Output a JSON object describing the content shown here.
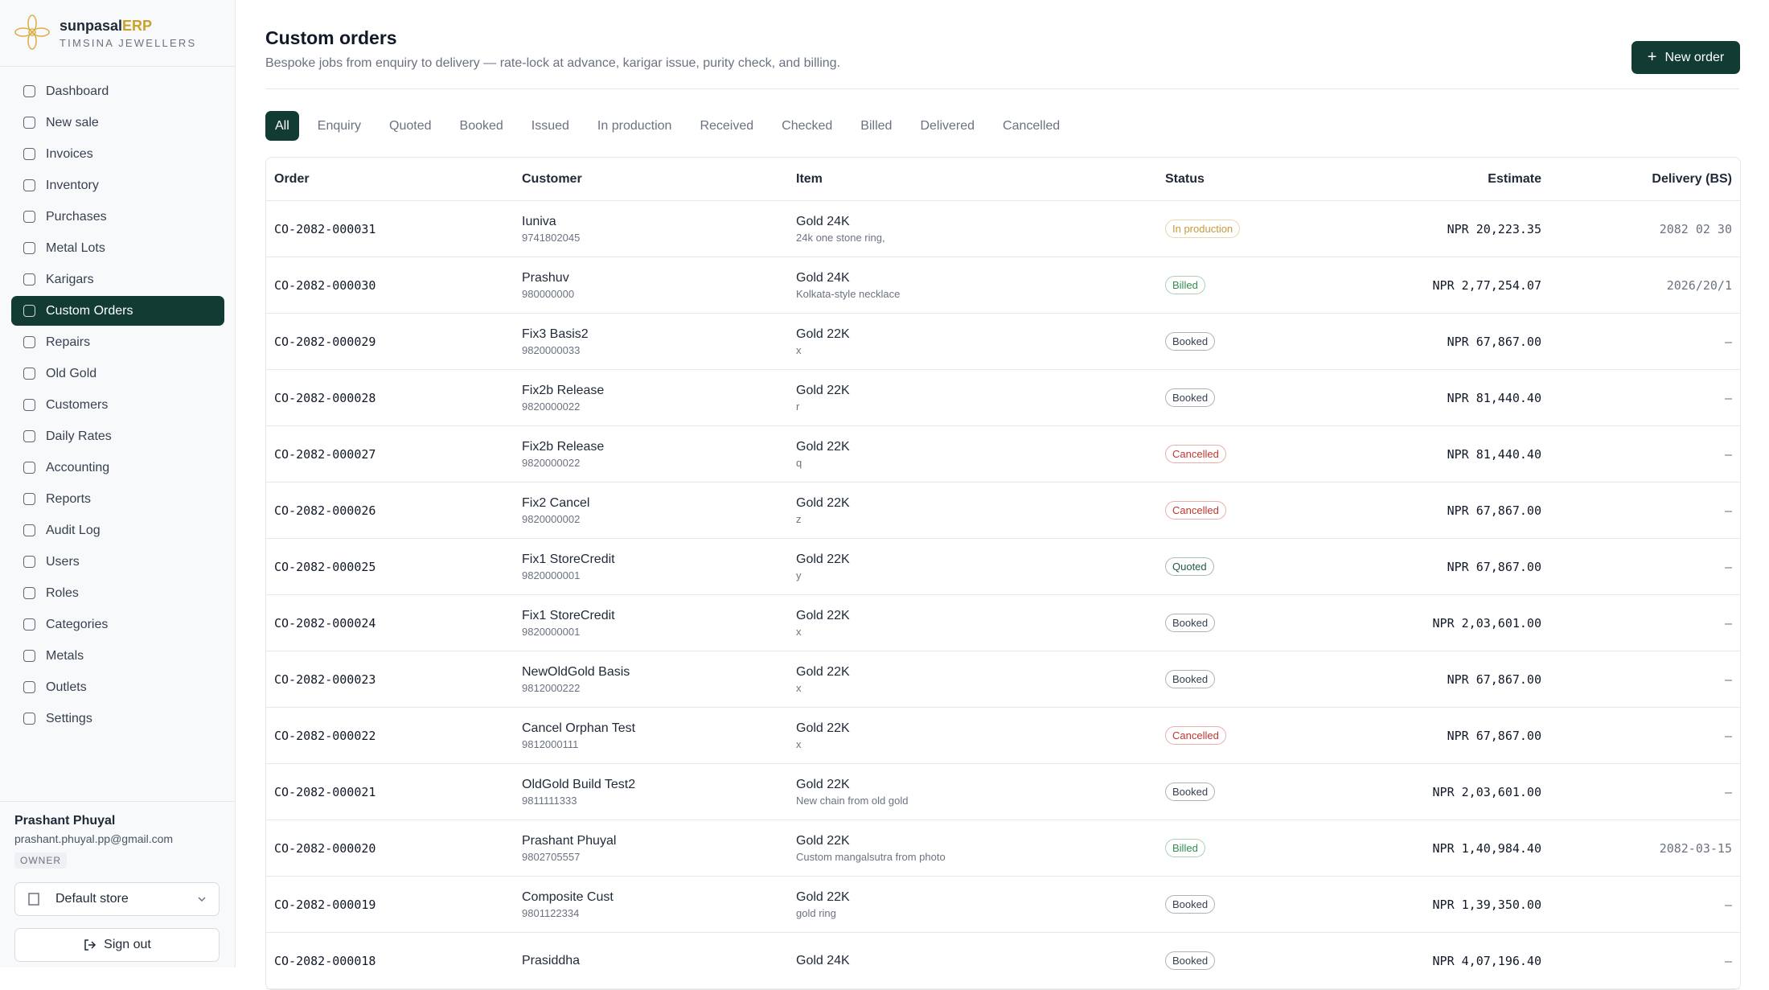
{
  "brand": {
    "name": "sunpasal",
    "suffix": "ERP",
    "tagline": "TIMSINA JEWELLERS"
  },
  "nav": [
    "Dashboard",
    "New sale",
    "Invoices",
    "Inventory",
    "Purchases",
    "Metal Lots",
    "Karigars",
    "Custom Orders",
    "Repairs",
    "Old Gold",
    "Customers",
    "Daily Rates",
    "Accounting",
    "Reports",
    "Audit Log",
    "Users",
    "Roles",
    "Categories",
    "Metals",
    "Outlets",
    "Settings"
  ],
  "nav_active": 7,
  "user": {
    "name": "Prashant Phuyal",
    "email": "prashant.phuyal.pp@gmail.com",
    "role": "OWNER",
    "store": "Default store",
    "sign_out": "Sign out"
  },
  "header": {
    "title": "Custom orders",
    "subtitle": "Bespoke jobs from enquiry to delivery — rate-lock at advance, karigar issue, purity check, and billing.",
    "button": "New order"
  },
  "tabs": [
    "All",
    "Enquiry",
    "Quoted",
    "Booked",
    "Issued",
    "In production",
    "Received",
    "Checked",
    "Billed",
    "Delivered",
    "Cancelled"
  ],
  "tab_active": 0,
  "table": {
    "columns": [
      "Order",
      "Customer",
      "Item",
      "Status",
      "Estimate",
      "Delivery (BS)"
    ],
    "rows": [
      {
        "order": "CO-2082-000031",
        "customer": "Iuniva",
        "phone": "9741802045",
        "item": "Gold 24K",
        "note": "24k one stone ring,",
        "status": "In production",
        "status_color": "#c79a3b",
        "estimate": "NPR 20,223.35",
        "delivery": "2082 02 30"
      },
      {
        "order": "CO-2082-000030",
        "customer": "Prashuv",
        "phone": "980000000",
        "item": "Gold 24K",
        "note": "Kolkata-style necklace",
        "status": "Billed",
        "status_color": "#2f8f4e",
        "estimate": "NPR 2,77,254.07",
        "delivery": "2026/20/1"
      },
      {
        "order": "CO-2082-000029",
        "customer": "Fix3 Basis2",
        "phone": "9820000033",
        "item": "Gold 22K",
        "note": "x",
        "status": "Booked",
        "status_color": "#374151",
        "estimate": "NPR 67,867.00",
        "delivery": "—"
      },
      {
        "order": "CO-2082-000028",
        "customer": "Fix2b Release",
        "phone": "9820000022",
        "item": "Gold 22K",
        "note": "r",
        "status": "Booked",
        "status_color": "#374151",
        "estimate": "NPR 81,440.40",
        "delivery": "—"
      },
      {
        "order": "CO-2082-000027",
        "customer": "Fix2b Release",
        "phone": "9820000022",
        "item": "Gold 22K",
        "note": "q",
        "status": "Cancelled",
        "status_color": "#c2362f",
        "estimate": "NPR 81,440.40",
        "delivery": "—"
      },
      {
        "order": "CO-2082-000026",
        "customer": "Fix2 Cancel",
        "phone": "9820000002",
        "item": "Gold 22K",
        "note": "z",
        "status": "Cancelled",
        "status_color": "#c2362f",
        "estimate": "NPR 67,867.00",
        "delivery": "—"
      },
      {
        "order": "CO-2082-000025",
        "customer": "Fix1 StoreCredit",
        "phone": "9820000001",
        "item": "Gold 22K",
        "note": "y",
        "status": "Quoted",
        "status_color": "#1f5a47",
        "estimate": "NPR 67,867.00",
        "delivery": "—"
      },
      {
        "order": "CO-2082-000024",
        "customer": "Fix1 StoreCredit",
        "phone": "9820000001",
        "item": "Gold 22K",
        "note": "x",
        "status": "Booked",
        "status_color": "#374151",
        "estimate": "NPR 2,03,601.00",
        "delivery": "—"
      },
      {
        "order": "CO-2082-000023",
        "customer": "NewOldGold Basis",
        "phone": "9812000222",
        "item": "Gold 22K",
        "note": "x",
        "status": "Booked",
        "status_color": "#374151",
        "estimate": "NPR 67,867.00",
        "delivery": "—"
      },
      {
        "order": "CO-2082-000022",
        "customer": "Cancel Orphan Test",
        "phone": "9812000111",
        "item": "Gold 22K",
        "note": "x",
        "status": "Cancelled",
        "status_color": "#c2362f",
        "estimate": "NPR 67,867.00",
        "delivery": "—"
      },
      {
        "order": "CO-2082-000021",
        "customer": "OldGold Build Test2",
        "phone": "9811111333",
        "item": "Gold 22K",
        "note": "New chain from old gold",
        "status": "Booked",
        "status_color": "#374151",
        "estimate": "NPR 2,03,601.00",
        "delivery": "—"
      },
      {
        "order": "CO-2082-000020",
        "customer": "Prashant Phuyal",
        "phone": "9802705557",
        "item": "Gold 22K",
        "note": "Custom mangalsutra from photo",
        "status": "Billed",
        "status_color": "#2f8f4e",
        "estimate": "NPR 1,40,984.40",
        "delivery": "2082-03-15"
      },
      {
        "order": "CO-2082-000019",
        "customer": "Composite Cust",
        "phone": "9801122334",
        "item": "Gold 22K",
        "note": "gold ring",
        "status": "Booked",
        "status_color": "#374151",
        "estimate": "NPR 1,39,350.00",
        "delivery": "—"
      },
      {
        "order": "CO-2082-000018",
        "customer": "Prasiddha",
        "item": "Gold 24K",
        "status": "Booked",
        "status_color": "#374151",
        "estimate": "NPR 4,07,196.40",
        "delivery": "—"
      }
    ]
  }
}
